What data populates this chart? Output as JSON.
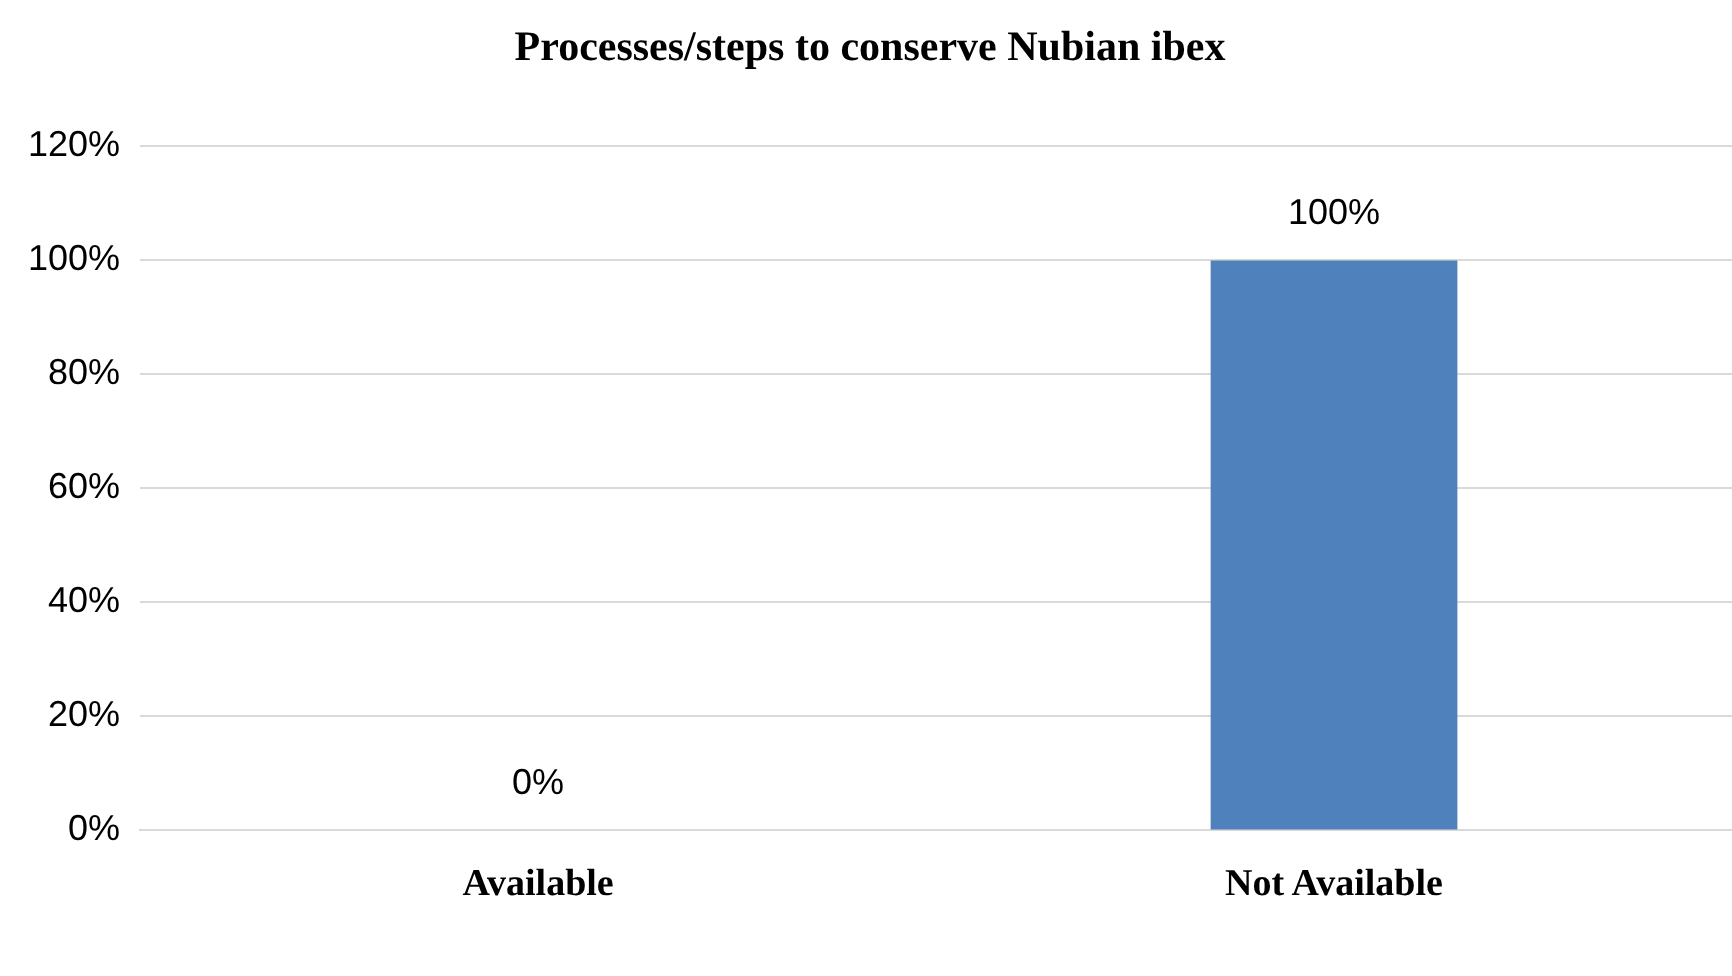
{
  "chart_data": {
    "type": "bar",
    "title": "Processes/steps to conserve Nubian ibex",
    "categories": [
      "Available",
      "Not Available"
    ],
    "values": [
      0,
      100
    ],
    "color": "#4f81bd",
    "value_labels": [
      "0%",
      "100%"
    ],
    "ylim": [
      0,
      120
    ],
    "yticks": [
      {
        "value": 0,
        "label": "0%"
      },
      {
        "value": 20,
        "label": "20%"
      },
      {
        "value": 40,
        "label": "40%"
      },
      {
        "value": 60,
        "label": "60%"
      },
      {
        "value": 80,
        "label": "80%"
      },
      {
        "value": 100,
        "label": "100%"
      },
      {
        "value": 120,
        "label": "120%"
      }
    ],
    "grid": "y",
    "legend": false
  }
}
